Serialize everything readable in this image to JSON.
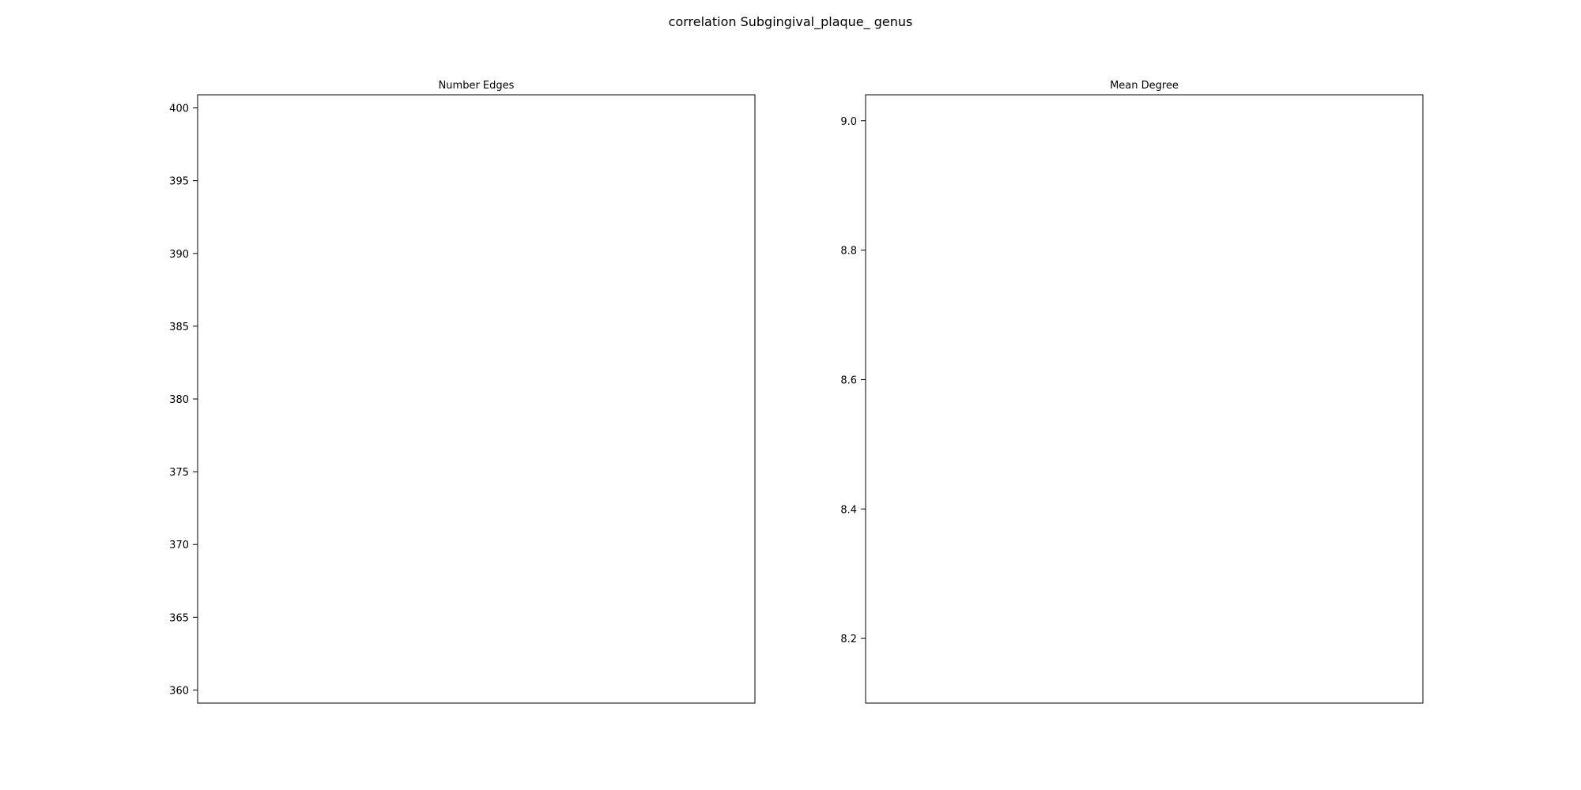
{
  "figure": {
    "title": "correlation Subgingival_plaque_ genus"
  },
  "chart_data": [
    {
      "type": "line",
      "title": "Number Edges",
      "xlabel": "",
      "ylabel": "",
      "ylim": [
        359.1,
        400.9
      ],
      "yticks": [
        360,
        365,
        370,
        375,
        380,
        385,
        390,
        395,
        400
      ],
      "ytick_labels": [
        "360",
        "365",
        "370",
        "375",
        "380",
        "385",
        "390",
        "395",
        "400"
      ],
      "xticks": [],
      "series": []
    },
    {
      "type": "line",
      "title": "Mean Degree",
      "xlabel": "",
      "ylabel": "",
      "ylim": [
        8.1,
        9.04
      ],
      "yticks": [
        8.2,
        8.4,
        8.6,
        8.8,
        9.0
      ],
      "ytick_labels": [
        "8.2",
        "8.4",
        "8.6",
        "8.8",
        "9.0"
      ],
      "xticks": [],
      "series": []
    }
  ]
}
